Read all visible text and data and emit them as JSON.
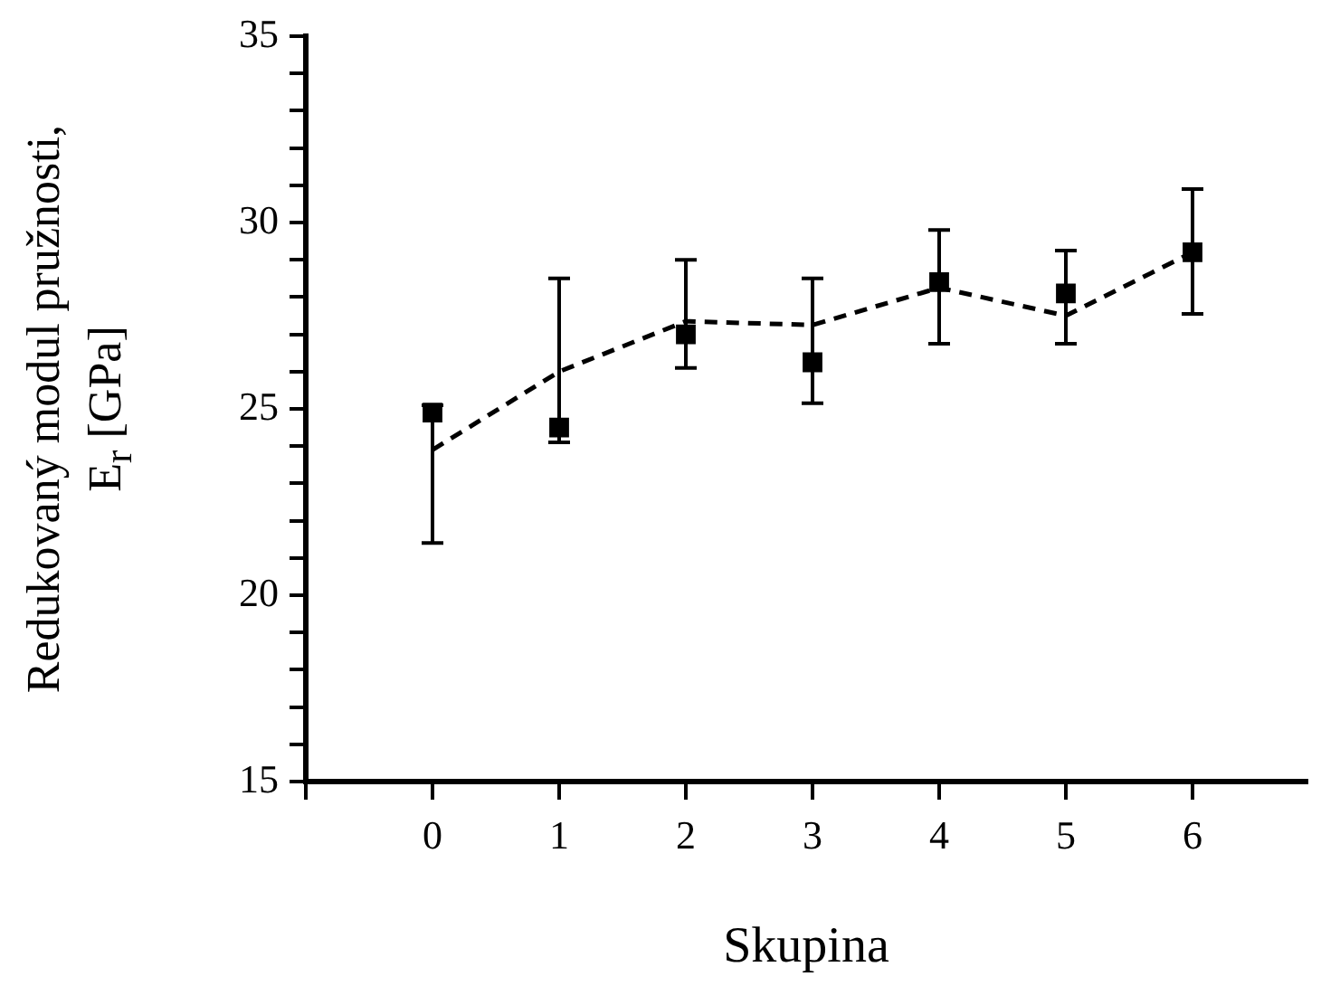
{
  "chart_data": {
    "type": "scatter",
    "xlabel": "Skupina",
    "ylabel": "Redukovaný modul pružnosti,\nE$_{r}$ [GPa]",
    "xlim": [
      -1,
      6.9
    ],
    "xticks": [
      {
        "value": -1,
        "label": null
      },
      0,
      1,
      2,
      3,
      4,
      5,
      6
    ],
    "ylim": [
      15,
      35
    ],
    "yticks": [
      15,
      {
        "value": 16,
        "label": null
      },
      {
        "value": 17,
        "label": null
      },
      {
        "value": 18,
        "label": null
      },
      {
        "value": 19,
        "label": null
      },
      20,
      {
        "value": 21,
        "label": null
      },
      {
        "value": 22,
        "label": null
      },
      {
        "value": 23,
        "label": null
      },
      {
        "value": 24,
        "label": null
      },
      25,
      {
        "value": 26,
        "label": null
      },
      {
        "value": 27,
        "label": null
      },
      {
        "value": 28,
        "label": null
      },
      {
        "value": 29,
        "label": null
      },
      30,
      {
        "value": 31,
        "label": null
      },
      {
        "value": 32,
        "label": null
      },
      {
        "value": 33,
        "label": null
      },
      {
        "value": 34,
        "label": null
      },
      35
    ],
    "series": [
      {
        "type": "scatter",
        "color": "#000000",
        "marker": "square",
        "x": [
          0,
          1,
          2,
          3,
          4,
          5,
          6
        ],
        "values": [
          24.9,
          24.5,
          27.0,
          26.25,
          28.4,
          28.1,
          29.2
        ],
        "errors": [
          [
            21.4,
            25.1
          ],
          [
            24.1,
            28.5
          ],
          [
            26.1,
            29.0
          ],
          [
            25.15,
            28.5
          ],
          [
            26.75,
            29.8
          ],
          [
            26.75,
            29.25
          ],
          [
            27.55,
            30.9
          ]
        ]
      },
      {
        "type": "line",
        "color": "#000000",
        "marker": "none",
        "line_style": "dashed",
        "x": [
          0,
          1,
          2,
          3,
          4,
          5,
          6
        ],
        "values": [
          23.9,
          26.0,
          27.35,
          27.25,
          28.25,
          27.5,
          29.2
        ]
      }
    ]
  }
}
